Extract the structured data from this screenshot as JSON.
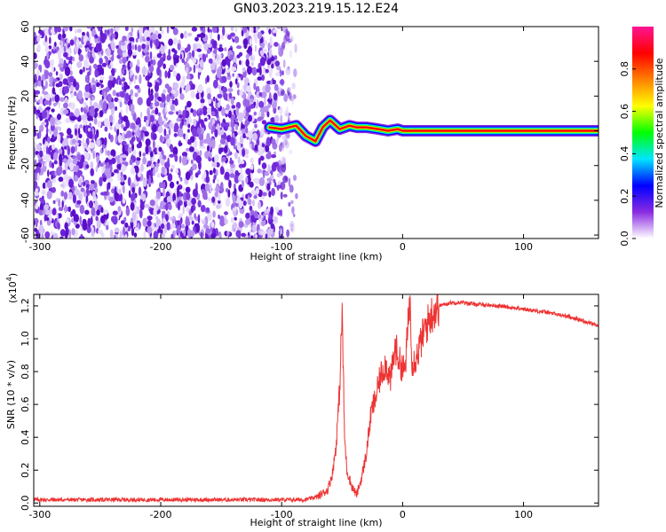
{
  "chart_data": [
    {
      "type": "heatmap",
      "title": "GN03.2023.219.15.12.E24",
      "xlabel": "Height of straight line (km)",
      "ylabel": "Frequency (Hz)",
      "xlim": [
        -305,
        162
      ],
      "ylim": [
        -62,
        60
      ],
      "x_ticks": [
        -300,
        -200,
        -100,
        0,
        100
      ],
      "y_ticks": [
        -60,
        -40,
        -20,
        0,
        20,
        40,
        60
      ],
      "colorbar": {
        "label": "Normalized spectral amplitude",
        "range": [
          0,
          1
        ],
        "ticks": [
          "0.0",
          "0.2",
          "0.4",
          "0.6",
          "0.8"
        ],
        "tick_values": [
          0.0,
          0.2,
          0.4,
          0.6,
          0.8
        ],
        "colors": [
          "#ffffff",
          "#8a2be2",
          "#0000ff",
          "#00e5ff",
          "#00ff00",
          "#ffff00",
          "#ff8000",
          "#ff0000",
          "#ff1493"
        ]
      },
      "noise_region_x": [
        -305,
        -87
      ],
      "noise_fade_x": [
        -110,
        -87
      ],
      "ridge": [
        {
          "x": -110,
          "y": 2
        },
        {
          "x": -100,
          "y": 1
        },
        {
          "x": -88,
          "y": 3
        },
        {
          "x": -80,
          "y": -3
        },
        {
          "x": -72,
          "y": -6
        },
        {
          "x": -66,
          "y": 2
        },
        {
          "x": -60,
          "y": 6
        },
        {
          "x": -52,
          "y": 1
        },
        {
          "x": -44,
          "y": 3
        },
        {
          "x": -38,
          "y": 2
        },
        {
          "x": -30,
          "y": 2
        },
        {
          "x": -20,
          "y": 1
        },
        {
          "x": -12,
          "y": 0
        },
        {
          "x": -4,
          "y": 1
        },
        {
          "x": 0,
          "y": 0
        },
        {
          "x": 162,
          "y": 0
        }
      ]
    },
    {
      "type": "line",
      "xlabel": "Height of straight line (km)",
      "ylabel": "SNR (10 * v/v)",
      "y_scale_note": "(x10",
      "y_scale_exp": "4",
      "xlim": [
        -305,
        162
      ],
      "ylim": [
        -0.02,
        1.27
      ],
      "x_ticks": [
        -300,
        -200,
        -100,
        0,
        100
      ],
      "y_ticks": [
        "0.0",
        "0.2",
        "0.4",
        "0.6",
        "0.8",
        "1.0",
        "1.2"
      ],
      "y_tick_values": [
        0.0,
        0.2,
        0.4,
        0.6,
        0.8,
        1.0,
        1.2
      ],
      "color": "#ee3333",
      "series": [
        {
          "values": [
            {
              "x": -305,
              "y": 0.02
            },
            {
              "x": -250,
              "y": 0.02
            },
            {
              "x": -200,
              "y": 0.02
            },
            {
              "x": -150,
              "y": 0.02
            },
            {
              "x": -100,
              "y": 0.02
            },
            {
              "x": -80,
              "y": 0.02
            },
            {
              "x": -70,
              "y": 0.04
            },
            {
              "x": -62,
              "y": 0.08
            },
            {
              "x": -58,
              "y": 0.18
            },
            {
              "x": -55,
              "y": 0.35
            },
            {
              "x": -52,
              "y": 0.7
            },
            {
              "x": -50,
              "y": 1.17
            },
            {
              "x": -48,
              "y": 0.4
            },
            {
              "x": -46,
              "y": 0.2
            },
            {
              "x": -42,
              "y": 0.1
            },
            {
              "x": -38,
              "y": 0.05
            },
            {
              "x": -34,
              "y": 0.15
            },
            {
              "x": -30,
              "y": 0.3
            },
            {
              "x": -26,
              "y": 0.55
            },
            {
              "x": -22,
              "y": 0.65
            },
            {
              "x": -18,
              "y": 0.78
            },
            {
              "x": -14,
              "y": 0.85
            },
            {
              "x": -10,
              "y": 0.75
            },
            {
              "x": -6,
              "y": 0.95
            },
            {
              "x": -2,
              "y": 0.85
            },
            {
              "x": 2,
              "y": 0.8
            },
            {
              "x": 6,
              "y": 1.25
            },
            {
              "x": 8,
              "y": 0.85
            },
            {
              "x": 12,
              "y": 0.9
            },
            {
              "x": 18,
              "y": 1.05
            },
            {
              "x": 24,
              "y": 1.15
            },
            {
              "x": 30,
              "y": 1.2
            },
            {
              "x": 40,
              "y": 1.22
            },
            {
              "x": 50,
              "y": 1.22
            },
            {
              "x": 60,
              "y": 1.21
            },
            {
              "x": 80,
              "y": 1.2
            },
            {
              "x": 100,
              "y": 1.18
            },
            {
              "x": 120,
              "y": 1.16
            },
            {
              "x": 140,
              "y": 1.13
            },
            {
              "x": 162,
              "y": 1.08
            }
          ]
        }
      ]
    }
  ]
}
